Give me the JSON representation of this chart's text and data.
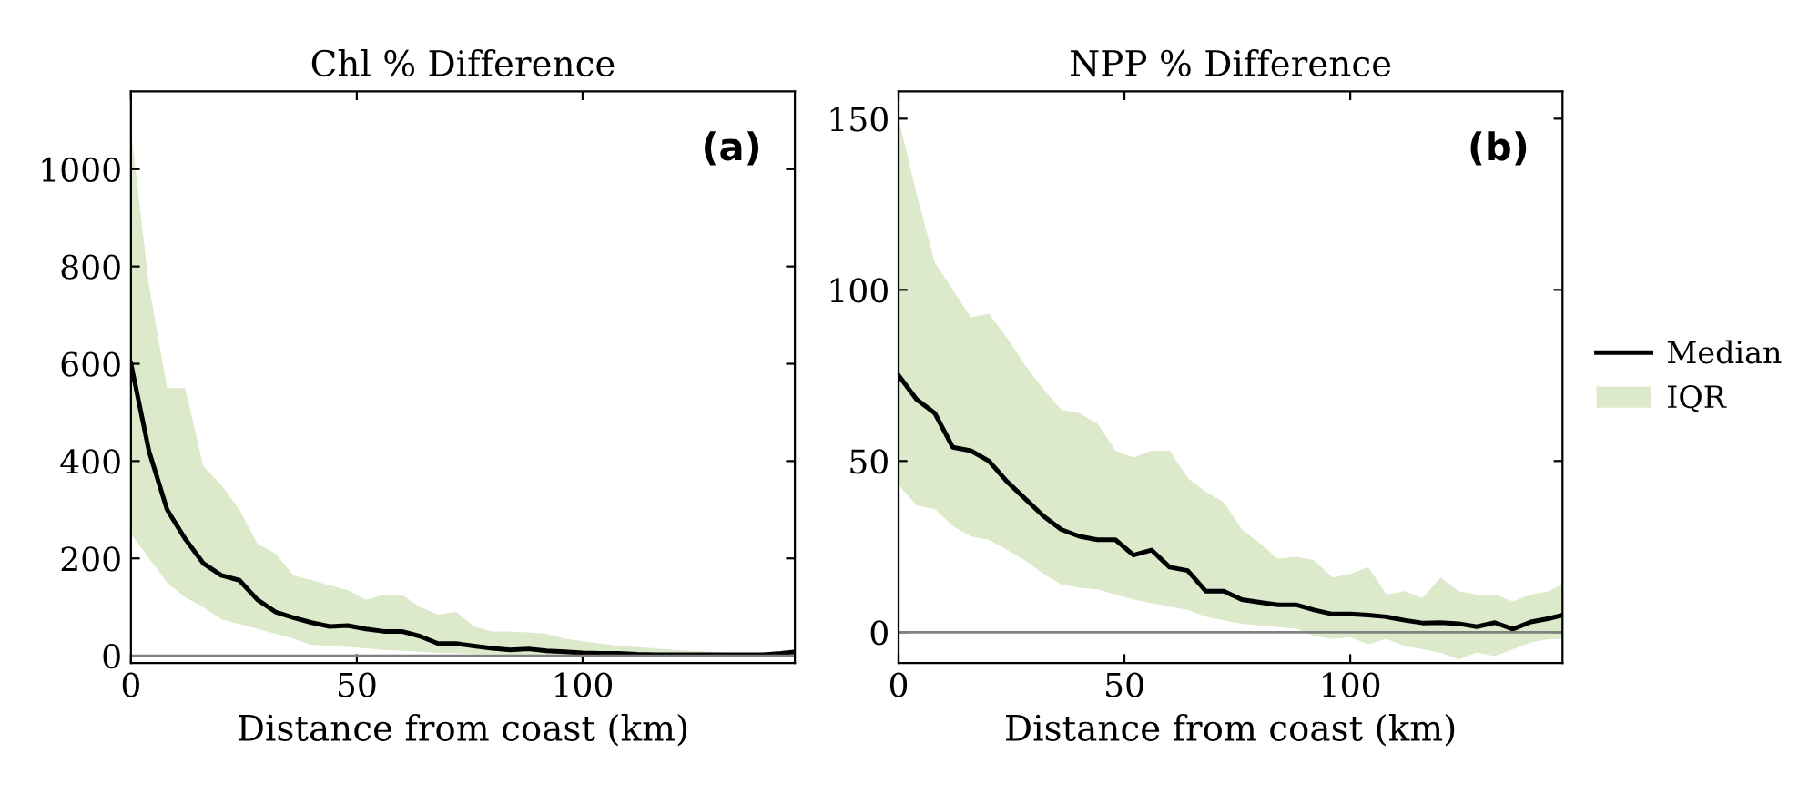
{
  "chart_data": [
    {
      "type": "line",
      "title": "Chl % Difference",
      "xlabel": "Distance from coast (km)",
      "annotations": [
        "(a)"
      ],
      "x": [
        0,
        4,
        8,
        12,
        16,
        20,
        24,
        28,
        32,
        36,
        40,
        44,
        48,
        52,
        56,
        60,
        64,
        68,
        72,
        76,
        80,
        84,
        88,
        92,
        96,
        100,
        104,
        108,
        112,
        116,
        120,
        124,
        128,
        132,
        136,
        140,
        144,
        147
      ],
      "series": [
        {
          "type": "area",
          "color": "#dce9cb",
          "values": [
            null,
            null,
            null,
            null,
            null,
            null,
            null,
            null,
            null,
            null,
            null,
            null,
            null,
            null,
            null,
            null,
            null,
            null,
            null,
            null,
            null,
            null,
            null,
            null,
            null,
            null,
            null,
            null,
            null,
            null,
            null,
            null,
            null,
            null,
            null,
            null,
            null,
            null
          ],
          "lower": [
            250,
            200,
            150,
            120,
            100,
            75,
            65,
            55,
            45,
            35,
            22,
            20,
            18,
            15,
            12,
            10,
            8,
            6,
            5,
            4,
            3,
            2,
            2,
            1,
            1,
            1,
            0,
            0,
            0,
            0,
            0,
            0,
            0,
            0,
            0,
            0,
            0,
            2
          ],
          "upper": [
            1080,
            760,
            550,
            550,
            390,
            350,
            300,
            230,
            210,
            165,
            155,
            145,
            135,
            115,
            125,
            125,
            100,
            85,
            90,
            60,
            50,
            50,
            48,
            45,
            35,
            30,
            25,
            20,
            18,
            15,
            12,
            10,
            8,
            6,
            5,
            6,
            10,
            12
          ]
        },
        {
          "color": "#000000",
          "values": [
            600,
            420,
            300,
            240,
            190,
            165,
            155,
            115,
            90,
            78,
            68,
            60,
            62,
            55,
            50,
            50,
            40,
            25,
            25,
            20,
            15,
            12,
            14,
            10,
            8,
            6,
            5,
            5,
            3,
            2,
            2,
            2,
            2,
            2,
            2,
            2,
            5,
            8
          ]
        }
      ],
      "ref_lines": [
        {
          "axis": "y",
          "value": 0,
          "color": "#808080"
        }
      ],
      "xlim": [
        0,
        147
      ],
      "xticks": [
        0,
        50,
        100
      ],
      "ylim": [
        -15,
        1160
      ],
      "yticks": [
        0,
        200,
        400,
        600,
        800,
        1000
      ],
      "grid": false,
      "legend": false
    },
    {
      "type": "line",
      "title": "NPP % Difference",
      "xlabel": "Distance from coast (km)",
      "annotations": [
        "(b)"
      ],
      "x": [
        0,
        4,
        8,
        12,
        16,
        20,
        24,
        28,
        32,
        36,
        40,
        44,
        48,
        52,
        56,
        60,
        64,
        68,
        72,
        76,
        80,
        84,
        88,
        92,
        96,
        100,
        104,
        108,
        112,
        116,
        120,
        124,
        128,
        132,
        136,
        140,
        144,
        147
      ],
      "series": [
        {
          "name": "IQR",
          "type": "area",
          "color": "#dce9cb",
          "values": [
            null,
            null,
            null,
            null,
            null,
            null,
            null,
            null,
            null,
            null,
            null,
            null,
            null,
            null,
            null,
            null,
            null,
            null,
            null,
            null,
            null,
            null,
            null,
            null,
            null,
            null,
            null,
            null,
            null,
            null,
            null,
            null,
            null,
            null,
            null,
            null,
            null,
            null
          ],
          "lower": [
            43,
            37,
            36,
            31,
            28,
            27,
            24,
            21,
            17,
            14,
            13,
            12.5,
            11,
            9.5,
            8.5,
            7.5,
            6.5,
            4.5,
            3.5,
            2.5,
            2,
            1.5,
            1,
            -1,
            -2,
            -1.5,
            -3.5,
            -2,
            -4,
            -5,
            -6,
            -8,
            -6,
            -7,
            -5,
            -3,
            -2,
            -2
          ],
          "upper": [
            150,
            128,
            108,
            100,
            92,
            93,
            86,
            78,
            71,
            65,
            64,
            61,
            53,
            51,
            53,
            53,
            45,
            41,
            38,
            30,
            26,
            21.5,
            22,
            21,
            16,
            17,
            19,
            11,
            12,
            10,
            16,
            12,
            11,
            11,
            9,
            11,
            12,
            14
          ]
        },
        {
          "name": "Median",
          "color": "#000000",
          "values": [
            75,
            68,
            64,
            54,
            53,
            50,
            44,
            39,
            34,
            30,
            28,
            27,
            27,
            22.5,
            24,
            19,
            18,
            12,
            12,
            9.5,
            8.7,
            8,
            8,
            6.5,
            5.3,
            5.3,
            5,
            4.5,
            3.5,
            2.7,
            2.8,
            2.5,
            1.6,
            2.8,
            0.9,
            3,
            4,
            5
          ]
        }
      ],
      "ref_lines": [
        {
          "axis": "y",
          "value": 0,
          "color": "#808080"
        }
      ],
      "xlim": [
        0,
        147
      ],
      "xticks": [
        0,
        50,
        100
      ],
      "ylim": [
        -9,
        158
      ],
      "yticks": [
        0,
        50,
        100,
        150
      ],
      "grid": false,
      "legend": "right"
    }
  ]
}
